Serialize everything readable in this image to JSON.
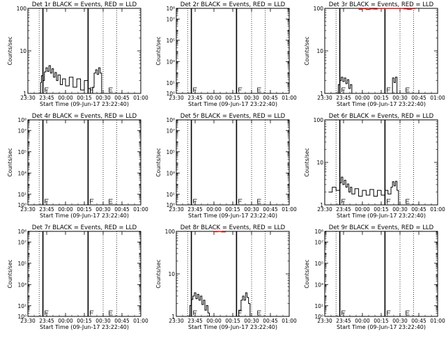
{
  "figure": {
    "x_tick_labels": [
      "23:30",
      "23:45",
      "00:00",
      "00:15",
      "00:30",
      "00:45",
      "01:00"
    ],
    "xlabel": "Start Time (09-Jun-17 23:22:40)",
    "ylabel": "Counts/sec"
  },
  "chart_data": [
    {
      "type": "line",
      "title": "Det 1r BLACK = Events, RED = LLD",
      "yscale": "log",
      "ylim": [
        1,
        100
      ],
      "y_ticks": [
        {
          "v": 1,
          "label": "1"
        },
        {
          "v": 10,
          "label": "10"
        },
        {
          "v": 100,
          "label": "100"
        }
      ],
      "series": [
        {
          "name": "Events",
          "color": "#000000",
          "x": [
            23.65,
            23.67,
            23.68,
            23.7,
            23.72,
            23.74,
            23.76,
            23.78,
            23.8,
            23.82,
            23.84,
            23.86,
            23.88,
            23.9,
            23.93,
            23.96,
            24.0,
            24.05,
            24.1,
            24.15,
            24.2,
            24.25,
            24.3,
            24.33,
            24.36,
            24.38,
            24.4,
            24.42,
            24.44,
            24.46,
            24.48
          ],
          "y": [
            1.0,
            1.8,
            2.6,
            2.0,
            3.2,
            4.0,
            3.3,
            4.5,
            3.0,
            3.8,
            2.4,
            3.1,
            2.0,
            2.7,
            1.6,
            2.2,
            1.5,
            2.4,
            1.4,
            2.2,
            1.2,
            2.0,
            1.3,
            1.0,
            1.4,
            3.0,
            3.6,
            2.8,
            4.0,
            3.0,
            1.0
          ]
        },
        {
          "name": "LLD",
          "color": "#ff0000",
          "x": [],
          "y": []
        }
      ]
    },
    {
      "type": "line",
      "title": "Det 2r BLACK = Events, RED = LLD",
      "yscale": "log",
      "ylim": [
        1,
        100000000
      ],
      "y_ticks": [
        {
          "v": 1,
          "label": "10⁰"
        },
        {
          "v": 10,
          "label": "10¹"
        },
        {
          "v": 1000,
          "label": "10³"
        },
        {
          "v": 100000,
          "label": "10⁵"
        },
        {
          "v": 10000000,
          "label": "10⁷"
        },
        {
          "v": 100000000,
          "label": "10⁸"
        }
      ],
      "series": [
        {
          "name": "Events",
          "color": "#000000",
          "x": [],
          "y": []
        },
        {
          "name": "LLD",
          "color": "#ff0000",
          "x": [],
          "y": []
        }
      ]
    },
    {
      "type": "line",
      "title": "Det 3r BLACK = Events, RED = LLD",
      "yscale": "log",
      "ylim": [
        1,
        100
      ],
      "y_ticks": [
        {
          "v": 1,
          "label": "1"
        },
        {
          "v": 10,
          "label": "10"
        },
        {
          "v": 100,
          "label": "100"
        }
      ],
      "series": [
        {
          "name": "Events",
          "color": "#000000",
          "x": [
            23.66,
            23.68,
            23.7,
            23.72,
            23.74,
            23.76,
            23.78,
            23.8,
            23.82,
            23.84,
            23.86,
            24.38,
            24.4,
            24.42,
            24.44,
            24.46
          ],
          "y": [
            1.0,
            1.6,
            2.0,
            2.4,
            1.9,
            2.3,
            1.7,
            2.1,
            1.3,
            1.6,
            1.0,
            1.0,
            2.3,
            1.8,
            2.4,
            1.0
          ]
        },
        {
          "name": "LLD",
          "color": "#ff0000",
          "x": [
            23.95,
            24.0,
            24.05,
            24.1,
            24.15,
            24.2,
            24.55,
            24.6,
            24.65,
            24.7
          ],
          "y": [
            95,
            98,
            94,
            97,
            96,
            99,
            97,
            95,
            98,
            96
          ]
        }
      ]
    },
    {
      "type": "line",
      "title": "Det 4r BLACK = Events, RED = LLD",
      "yscale": "log",
      "ylim": [
        1,
        100000000
      ],
      "y_ticks": [
        {
          "v": 1,
          "label": "10⁰"
        },
        {
          "v": 10,
          "label": "10¹"
        },
        {
          "v": 1000,
          "label": "10³"
        },
        {
          "v": 100000,
          "label": "10⁵"
        },
        {
          "v": 10000000,
          "label": "10⁷"
        },
        {
          "v": 100000000,
          "label": "10⁸"
        }
      ],
      "series": [
        {
          "name": "Events",
          "color": "#000000",
          "x": [],
          "y": []
        },
        {
          "name": "LLD",
          "color": "#ff0000",
          "x": [],
          "y": []
        }
      ]
    },
    {
      "type": "line",
      "title": "Det 5r BLACK = Events, RED = LLD",
      "yscale": "log",
      "ylim": [
        1,
        100000000
      ],
      "y_ticks": [
        {
          "v": 1,
          "label": "10⁰"
        },
        {
          "v": 10,
          "label": "10¹"
        },
        {
          "v": 1000,
          "label": "10³"
        },
        {
          "v": 100000,
          "label": "10⁵"
        },
        {
          "v": 10000000,
          "label": "10⁷"
        },
        {
          "v": 100000000,
          "label": "10⁸"
        }
      ],
      "series": [
        {
          "name": "Events",
          "color": "#000000",
          "x": [],
          "y": []
        },
        {
          "name": "LLD",
          "color": "#ff0000",
          "x": [],
          "y": []
        }
      ]
    },
    {
      "type": "line",
      "title": "Det 6r BLACK = Events, RED = LLD",
      "yscale": "log",
      "ylim": [
        1,
        100
      ],
      "y_ticks": [
        {
          "v": 1,
          "label": "1"
        },
        {
          "v": 10,
          "label": "10"
        },
        {
          "v": 100,
          "label": "100"
        }
      ],
      "series": [
        {
          "name": "Events",
          "color": "#000000",
          "x": [
            23.55,
            23.6,
            23.65,
            23.7,
            23.72,
            23.74,
            23.76,
            23.78,
            23.8,
            23.82,
            23.84,
            23.86,
            23.9,
            23.95,
            24.0,
            24.05,
            24.1,
            24.15,
            24.2,
            24.25,
            24.3,
            24.34,
            24.38,
            24.4,
            24.42,
            24.44,
            24.46,
            24.48
          ],
          "y": [
            2.0,
            2.6,
            2.2,
            3.3,
            4.5,
            3.0,
            3.8,
            2.6,
            3.1,
            2.0,
            2.6,
            1.8,
            2.4,
            1.6,
            2.2,
            1.7,
            2.3,
            1.6,
            2.2,
            1.7,
            2.2,
            1.8,
            2.6,
            3.5,
            2.8,
            3.6,
            2.2,
            1.0
          ]
        },
        {
          "name": "LLD",
          "color": "#ff0000",
          "x": [],
          "y": []
        }
      ]
    },
    {
      "type": "line",
      "title": "Det 7r BLACK = Events, RED = LLD",
      "yscale": "log",
      "ylim": [
        1,
        100000000
      ],
      "y_ticks": [
        {
          "v": 1,
          "label": "10⁰"
        },
        {
          "v": 10,
          "label": "10¹"
        },
        {
          "v": 1000,
          "label": "10³"
        },
        {
          "v": 100000,
          "label": "10⁵"
        },
        {
          "v": 10000000,
          "label": "10⁷"
        },
        {
          "v": 100000000,
          "label": "10⁸"
        }
      ],
      "series": [
        {
          "name": "Events",
          "color": "#000000",
          "x": [],
          "y": []
        },
        {
          "name": "LLD",
          "color": "#ff0000",
          "x": [],
          "y": []
        }
      ]
    },
    {
      "type": "line",
      "title": "Det 8r BLACK = Events, RED = LLD",
      "yscale": "log",
      "ylim": [
        1,
        100
      ],
      "y_ticks": [
        {
          "v": 1,
          "label": "1"
        },
        {
          "v": 10,
          "label": "10"
        },
        {
          "v": 100,
          "label": "100"
        }
      ],
      "series": [
        {
          "name": "Events",
          "color": "#000000",
          "x": [
            23.66,
            23.68,
            23.7,
            23.72,
            23.74,
            23.76,
            23.78,
            23.8,
            23.82,
            23.84,
            23.86,
            23.88,
            23.9,
            23.92,
            23.94,
            24.3,
            24.33,
            24.36,
            24.38,
            24.4,
            24.42,
            24.44,
            24.46,
            24.48
          ],
          "y": [
            1.0,
            1.8,
            2.5,
            3.0,
            3.6,
            2.6,
            3.3,
            2.4,
            3.0,
            1.9,
            2.4,
            1.4,
            1.8,
            1.2,
            1.0,
            1.0,
            1.4,
            2.4,
            3.0,
            2.4,
            3.6,
            2.8,
            2.0,
            1.0
          ]
        },
        {
          "name": "LLD",
          "color": "#ff0000",
          "x": [
            24.0,
            24.05,
            24.1,
            24.15
          ],
          "y": [
            98,
            99,
            97,
            98
          ]
        }
      ]
    },
    {
      "type": "line",
      "title": "Det 9r BLACK = Events, RED = LLD",
      "yscale": "log",
      "ylim": [
        1,
        100000000
      ],
      "y_ticks": [
        {
          "v": 1,
          "label": "10⁰"
        },
        {
          "v": 10,
          "label": "10¹"
        },
        {
          "v": 1000,
          "label": "10³"
        },
        {
          "v": 100000,
          "label": "10⁵"
        },
        {
          "v": 10000000,
          "label": "10⁷"
        },
        {
          "v": 100000000,
          "label": "10⁸"
        }
      ],
      "series": [
        {
          "name": "Events",
          "color": "#000000",
          "x": [],
          "y": []
        },
        {
          "name": "LLD",
          "color": "#ff0000",
          "x": [],
          "y": []
        }
      ]
    }
  ]
}
